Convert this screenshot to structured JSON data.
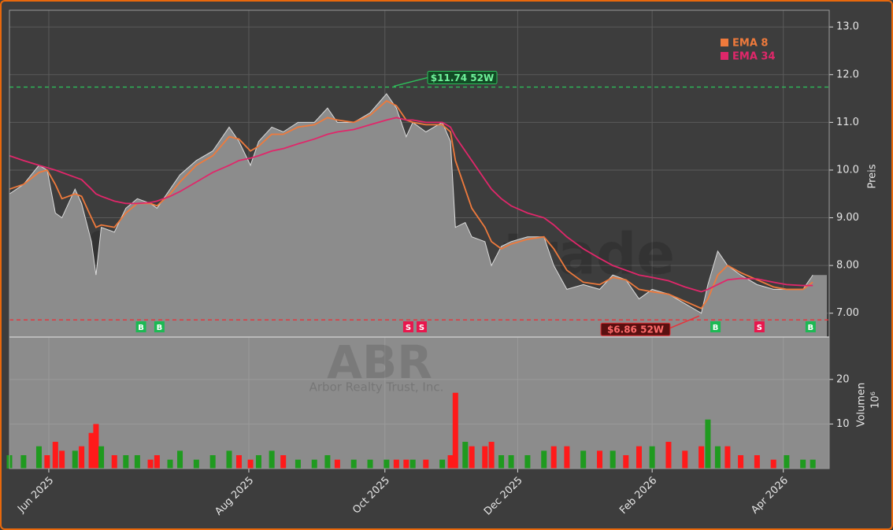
{
  "chart_data": [
    {
      "type": "line",
      "watermark": "forexsignale.trade",
      "ylabel": "Preis",
      "x": [
        0,
        4.3,
        9,
        11.5,
        14,
        16,
        20,
        22,
        25,
        26.4,
        28,
        32,
        35.5,
        39,
        43,
        45,
        49,
        52,
        57,
        62,
        67,
        70,
        73.5,
        76,
        80,
        83.5,
        88,
        93,
        97,
        100,
        105,
        110,
        115,
        118,
        121,
        123,
        127,
        132,
        134.5,
        136,
        139,
        141,
        145,
        147,
        150,
        153,
        158,
        163,
        166,
        170,
        175,
        180,
        184,
        188,
        192,
        196,
        201,
        206,
        211,
        213,
        216,
        219,
        223,
        228,
        233,
        237,
        242,
        245
      ],
      "values": [
        9.5,
        9.7,
        10.1,
        10.0,
        9.1,
        9.0,
        9.6,
        9.3,
        8.5,
        7.8,
        8.8,
        8.7,
        9.2,
        9.4,
        9.3,
        9.2,
        9.6,
        9.9,
        10.2,
        10.4,
        10.9,
        10.6,
        10.1,
        10.6,
        10.9,
        10.8,
        11.0,
        11.0,
        11.3,
        11.0,
        11.0,
        11.2,
        11.6,
        11.3,
        10.7,
        11.0,
        10.8,
        11.0,
        10.6,
        8.8,
        8.9,
        8.6,
        8.5,
        8.0,
        8.4,
        8.5,
        8.6,
        8.6,
        8.0,
        7.5,
        7.6,
        7.5,
        7.8,
        7.7,
        7.3,
        7.5,
        7.4,
        7.2,
        7.0,
        7.6,
        8.3,
        8.0,
        7.8,
        7.6,
        7.5,
        7.5,
        7.5,
        7.8
      ],
      "color": "#8c8c8c",
      "series": [
        {
          "name": "EMA 8",
          "color": "#ef7a3c",
          "values": [
            9.6,
            9.7,
            9.95,
            10.0,
            9.7,
            9.4,
            9.5,
            9.45,
            9.0,
            8.8,
            8.85,
            8.8,
            9.1,
            9.3,
            9.3,
            9.25,
            9.5,
            9.75,
            10.1,
            10.3,
            10.7,
            10.65,
            10.4,
            10.5,
            10.75,
            10.75,
            10.9,
            10.95,
            11.1,
            11.05,
            11.0,
            11.15,
            11.45,
            11.35,
            11.05,
            11.0,
            10.95,
            10.95,
            10.8,
            10.2,
            9.6,
            9.2,
            8.8,
            8.5,
            8.35,
            8.45,
            8.55,
            8.6,
            8.35,
            7.9,
            7.65,
            7.6,
            7.75,
            7.7,
            7.5,
            7.45,
            7.4,
            7.25,
            7.1,
            7.3,
            7.8,
            8.0,
            7.85,
            7.7,
            7.55,
            7.5,
            7.5,
            7.65
          ]
        },
        {
          "name": "EMA 34",
          "color": "#e0276a",
          "values": [
            10.3,
            10.2,
            10.1,
            10.05,
            10.0,
            9.95,
            9.85,
            9.8,
            9.6,
            9.5,
            9.45,
            9.35,
            9.3,
            9.3,
            9.32,
            9.35,
            9.45,
            9.55,
            9.75,
            9.95,
            10.1,
            10.2,
            10.25,
            10.3,
            10.4,
            10.45,
            10.55,
            10.65,
            10.75,
            10.8,
            10.85,
            10.95,
            11.05,
            11.1,
            11.05,
            11.05,
            11.0,
            11.0,
            10.9,
            10.7,
            10.4,
            10.2,
            9.8,
            9.6,
            9.4,
            9.25,
            9.1,
            9.0,
            8.85,
            8.6,
            8.35,
            8.15,
            8.0,
            7.9,
            7.8,
            7.75,
            7.68,
            7.55,
            7.45,
            7.5,
            7.6,
            7.7,
            7.73,
            7.72,
            7.65,
            7.6,
            7.58,
            7.58
          ]
        }
      ],
      "reference_lines": [
        {
          "value": 11.74,
          "label": "$11.74 52W",
          "color": "#2ebd5a"
        },
        {
          "value": 6.86,
          "label": "$6.86 52W",
          "color": "#e8323a"
        }
      ],
      "signals": {
        "x": [
          40,
          45.6,
          121.5,
          125.6,
          215.2,
          228.6,
          244.2
        ],
        "labels": [
          "B",
          "B",
          "S",
          "S",
          "B",
          "S",
          "B"
        ],
        "colors": [
          "#1db954",
          "#1db954",
          "#e8174d",
          "#e8174d",
          "#1db954",
          "#e8174d",
          "#1db954"
        ]
      },
      "xlim": [
        0,
        250
      ],
      "ylim": [
        6.5,
        13.35
      ],
      "yticks": [
        {
          "value": 7,
          "label": "7.00"
        },
        {
          "value": 8,
          "label": "8.00"
        },
        {
          "value": 9,
          "label": "9.00"
        },
        {
          "value": 10,
          "label": "10.0"
        },
        {
          "value": 11,
          "label": "11.0"
        },
        {
          "value": 12,
          "label": "12.0"
        },
        {
          "value": 13,
          "label": "13.0"
        }
      ],
      "grid": true
    },
    {
      "type": "bar",
      "watermark": "ABR",
      "watermark_subtitle": "Arbor Realty Trust, Inc.",
      "ylabel": "Volumen",
      "yunit": "10⁶",
      "x": [
        0,
        4.3,
        9,
        11.5,
        14,
        16,
        20,
        22,
        25,
        26.4,
        28,
        32,
        35.5,
        39,
        43,
        45,
        49,
        52,
        57,
        62,
        67,
        70,
        73.5,
        76,
        80,
        83.5,
        88,
        93,
        97,
        100,
        105,
        110,
        115,
        118,
        121,
        123,
        127,
        132,
        134.5,
        136,
        139,
        141,
        145,
        147,
        150,
        153,
        158,
        163,
        166,
        170,
        175,
        180,
        184,
        188,
        192,
        196,
        201,
        206,
        211,
        213,
        216,
        219,
        223,
        228,
        233,
        237,
        242,
        245
      ],
      "values": [
        3,
        3,
        5,
        3,
        6,
        4,
        4,
        5,
        8,
        10,
        5,
        3,
        3,
        3,
        2,
        3,
        2,
        4,
        2,
        3,
        4,
        3,
        2,
        3,
        4,
        3,
        2,
        2,
        3,
        2,
        2,
        2,
        2,
        2,
        2,
        2,
        2,
        2,
        3,
        17,
        6,
        5,
        5,
        6,
        3,
        3,
        3,
        4,
        5,
        5,
        4,
        4,
        4,
        3,
        5,
        5,
        6,
        4,
        5,
        11,
        5,
        5,
        3,
        3,
        2,
        3,
        2,
        2
      ],
      "up_color": "#1f9a1f",
      "down_color": "#ff1a1a",
      "xlim": [
        0,
        250
      ],
      "xticks": [
        {
          "value": 12,
          "label": "Jun 2025"
        },
        {
          "value": 73,
          "label": "Aug 2025"
        },
        {
          "value": 114.5,
          "label": "Oct 2025"
        },
        {
          "value": 155,
          "label": "Dec 2025"
        },
        {
          "value": 196,
          "label": "Feb 2026"
        },
        {
          "value": 236,
          "label": "Apr 2026"
        }
      ],
      "ylim": [
        0,
        29.5
      ],
      "yticks": [
        10,
        20
      ],
      "grid": true
    }
  ]
}
